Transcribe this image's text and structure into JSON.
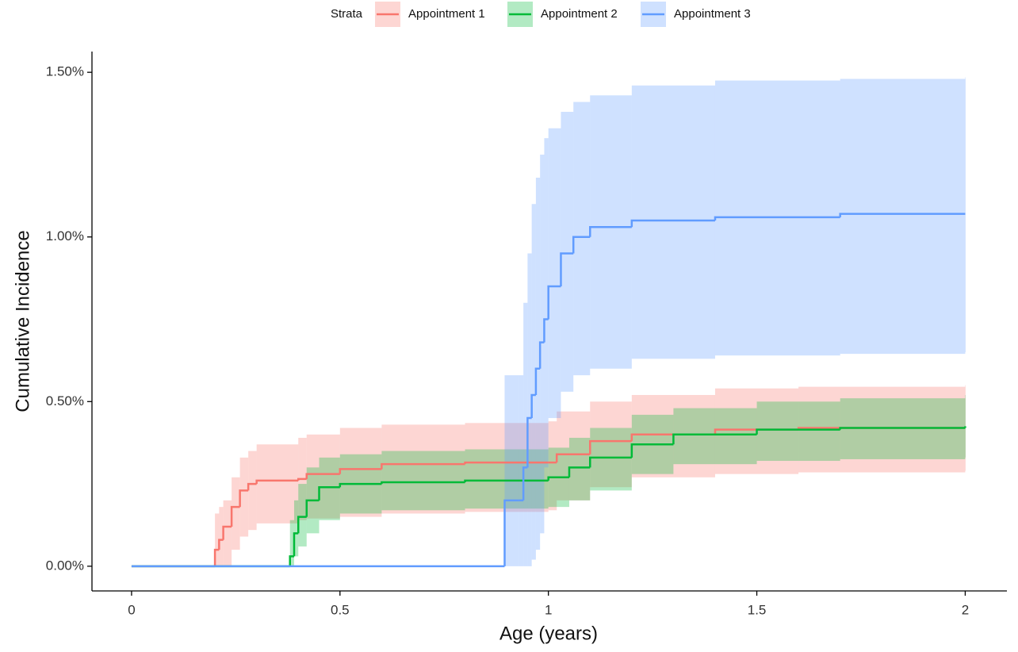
{
  "chart_data": {
    "type": "step",
    "xlabel": "Age (years)",
    "ylabel": "Cumulative Incidence",
    "legend_title": "Strata",
    "legend_position": "top",
    "xlim": [
      -0.095,
      2.1
    ],
    "ylim": [
      -0.075,
      1.563
    ],
    "xticks": [
      0,
      0.5,
      1,
      1.5,
      2
    ],
    "yticks": [
      {
        "value": 0,
        "label": "0.00%"
      },
      {
        "value": 0.5,
        "label": "0.50%"
      },
      {
        "value": 1,
        "label": "1.00%"
      },
      {
        "value": 1.5,
        "label": "1.50%"
      }
    ],
    "series": [
      {
        "name": "Appointment 1",
        "color": "#F8766D",
        "x": [
          0,
          0.2,
          0.21,
          0.22,
          0.24,
          0.26,
          0.28,
          0.3,
          0.4,
          0.42,
          0.5,
          0.6,
          0.8,
          1.0,
          1.02,
          1.1,
          1.2,
          1.4,
          1.6,
          2.0
        ],
        "values": [
          0,
          0.05,
          0.08,
          0.12,
          0.18,
          0.23,
          0.25,
          0.26,
          0.265,
          0.28,
          0.295,
          0.31,
          0.315,
          0.315,
          0.34,
          0.38,
          0.4,
          0.415,
          0.42,
          0.42
        ],
        "lower": [
          null,
          0,
          0,
          0,
          0.05,
          0.09,
          0.11,
          0.13,
          0.14,
          0.145,
          0.15,
          0.16,
          0.165,
          0.17,
          0.2,
          0.24,
          0.27,
          0.28,
          0.285,
          0.29
        ],
        "upper": [
          null,
          0.16,
          0.18,
          0.2,
          0.27,
          0.33,
          0.35,
          0.37,
          0.39,
          0.4,
          0.42,
          0.43,
          0.435,
          0.44,
          0.47,
          0.5,
          0.52,
          0.54,
          0.545,
          0.55
        ]
      },
      {
        "name": "Appointment 2",
        "color": "#00BA38",
        "x": [
          0,
          0.38,
          0.39,
          0.4,
          0.42,
          0.45,
          0.5,
          0.6,
          0.8,
          1.0,
          1.05,
          1.1,
          1.2,
          1.3,
          1.5,
          1.7,
          2.0
        ],
        "values": [
          0,
          0.03,
          0.1,
          0.15,
          0.2,
          0.24,
          0.25,
          0.255,
          0.26,
          0.27,
          0.3,
          0.33,
          0.37,
          0.4,
          0.415,
          0.42,
          0.425
        ],
        "lower": [
          null,
          0,
          0.03,
          0.06,
          0.1,
          0.14,
          0.16,
          0.17,
          0.175,
          0.18,
          0.2,
          0.23,
          0.28,
          0.31,
          0.32,
          0.325,
          0.33
        ],
        "upper": [
          null,
          0.14,
          0.2,
          0.25,
          0.3,
          0.33,
          0.34,
          0.35,
          0.355,
          0.36,
          0.39,
          0.42,
          0.46,
          0.48,
          0.5,
          0.51,
          0.52
        ]
      },
      {
        "name": "Appointment 3",
        "color": "#619CFF",
        "x": [
          0,
          0.895,
          0.93,
          0.94,
          0.95,
          0.96,
          0.97,
          0.98,
          0.99,
          1.0,
          1.03,
          1.06,
          1.1,
          1.2,
          1.4,
          1.7,
          2.0
        ],
        "values": [
          0,
          0.2,
          0.2,
          0.3,
          0.45,
          0.52,
          0.6,
          0.68,
          0.75,
          0.85,
          0.95,
          1.0,
          1.03,
          1.05,
          1.06,
          1.07,
          1.07
        ],
        "lower": [
          null,
          0,
          0,
          0,
          0,
          0.02,
          0.05,
          0.1,
          0.3,
          0.45,
          0.53,
          0.58,
          0.6,
          0.63,
          0.64,
          0.645,
          0.65
        ],
        "upper": [
          null,
          0.58,
          0.58,
          0.8,
          0.95,
          1.1,
          1.18,
          1.25,
          1.3,
          1.33,
          1.38,
          1.41,
          1.43,
          1.46,
          1.475,
          1.48,
          1.485
        ]
      }
    ]
  }
}
